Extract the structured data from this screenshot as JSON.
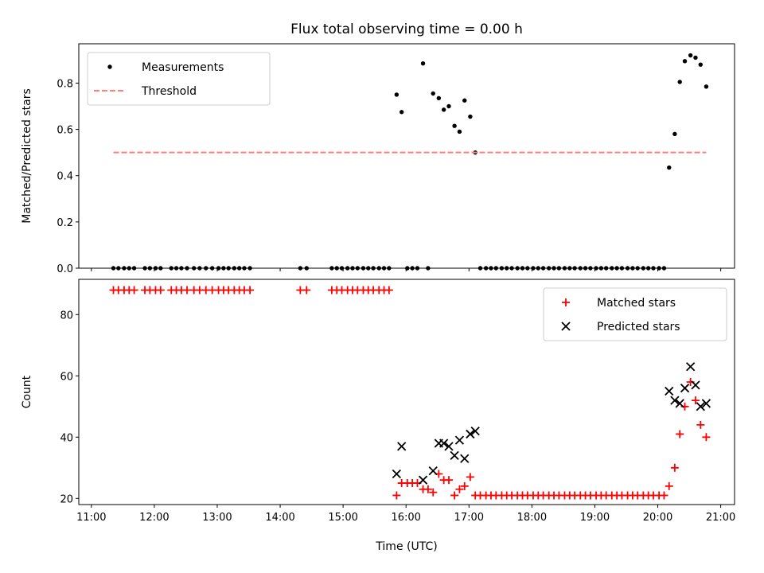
{
  "title": "Flux total observing time = 0.00 h",
  "chart_data": [
    {
      "type": "scatter",
      "ylabel": "Matched/Predicted stars",
      "xlim": [
        10.8,
        21.22
      ],
      "ylim": [
        0.0,
        0.97
      ],
      "yticks": [
        0.0,
        0.2,
        0.4,
        0.6,
        0.8
      ],
      "ytick_labels": [
        "0.0",
        "0.2",
        "0.4",
        "0.6",
        "0.8"
      ],
      "legend_position": "top-left",
      "series": [
        {
          "name": "Measurements",
          "marker": "dot",
          "color": "#000000",
          "points": [
            [
              11.35,
              0
            ],
            [
              11.43,
              0
            ],
            [
              11.52,
              0
            ],
            [
              11.6,
              0
            ],
            [
              11.68,
              0
            ],
            [
              11.85,
              0
            ],
            [
              11.93,
              0
            ],
            [
              12.02,
              0
            ],
            [
              12.1,
              0
            ],
            [
              12.27,
              0
            ],
            [
              12.35,
              0
            ],
            [
              12.43,
              0
            ],
            [
              12.52,
              0
            ],
            [
              12.63,
              0
            ],
            [
              12.72,
              0
            ],
            [
              12.82,
              0
            ],
            [
              12.92,
              0
            ],
            [
              13.02,
              0
            ],
            [
              13.1,
              0
            ],
            [
              13.18,
              0
            ],
            [
              13.27,
              0
            ],
            [
              13.35,
              0
            ],
            [
              13.43,
              0
            ],
            [
              13.52,
              0
            ],
            [
              14.32,
              0
            ],
            [
              14.42,
              0
            ],
            [
              14.82,
              0
            ],
            [
              14.9,
              0
            ],
            [
              14.98,
              0
            ],
            [
              15.07,
              0
            ],
            [
              15.15,
              0
            ],
            [
              15.23,
              0
            ],
            [
              15.32,
              0
            ],
            [
              15.4,
              0
            ],
            [
              15.48,
              0
            ],
            [
              15.57,
              0
            ],
            [
              15.65,
              0
            ],
            [
              15.73,
              0
            ],
            [
              15.85,
              0.75
            ],
            [
              15.93,
              0.675
            ],
            [
              16.02,
              0
            ],
            [
              16.1,
              0
            ],
            [
              16.18,
              0
            ],
            [
              16.27,
              0.885
            ],
            [
              16.35,
              0
            ],
            [
              16.43,
              0.755
            ],
            [
              16.52,
              0.735
            ],
            [
              16.6,
              0.685
            ],
            [
              16.68,
              0.7
            ],
            [
              16.77,
              0.615
            ],
            [
              16.85,
              0.59
            ],
            [
              16.93,
              0.725
            ],
            [
              17.02,
              0.655
            ],
            [
              17.1,
              0.5
            ],
            [
              17.18,
              0
            ],
            [
              17.27,
              0
            ],
            [
              17.35,
              0
            ],
            [
              17.43,
              0
            ],
            [
              17.52,
              0
            ],
            [
              17.6,
              0
            ],
            [
              17.68,
              0
            ],
            [
              17.77,
              0
            ],
            [
              17.85,
              0
            ],
            [
              17.93,
              0
            ],
            [
              18.02,
              0
            ],
            [
              18.1,
              0
            ],
            [
              18.18,
              0
            ],
            [
              18.27,
              0
            ],
            [
              18.35,
              0
            ],
            [
              18.43,
              0
            ],
            [
              18.52,
              0
            ],
            [
              18.6,
              0
            ],
            [
              18.68,
              0
            ],
            [
              18.77,
              0
            ],
            [
              18.85,
              0
            ],
            [
              18.93,
              0
            ],
            [
              19.02,
              0
            ],
            [
              19.1,
              0
            ],
            [
              19.18,
              0
            ],
            [
              19.27,
              0
            ],
            [
              19.35,
              0
            ],
            [
              19.43,
              0
            ],
            [
              19.52,
              0
            ],
            [
              19.6,
              0
            ],
            [
              19.68,
              0
            ],
            [
              19.77,
              0
            ],
            [
              19.85,
              0
            ],
            [
              19.93,
              0
            ],
            [
              20.02,
              0
            ],
            [
              20.1,
              0
            ],
            [
              20.18,
              0.435
            ],
            [
              20.27,
              0.58
            ],
            [
              20.35,
              0.805
            ],
            [
              20.43,
              0.895
            ],
            [
              20.52,
              0.92
            ],
            [
              20.6,
              0.91
            ],
            [
              20.68,
              0.88
            ],
            [
              20.77,
              0.785
            ]
          ]
        },
        {
          "name": "Threshold",
          "marker": "dashed-line",
          "color": "#ff7f7f",
          "points": [
            [
              11.35,
              0.5
            ],
            [
              20.77,
              0.5
            ]
          ]
        }
      ]
    },
    {
      "type": "scatter",
      "xlabel": "Time (UTC)",
      "ylabel": "Count",
      "xlim": [
        10.8,
        21.22
      ],
      "ylim": [
        18.0,
        91.5
      ],
      "yticks": [
        20,
        40,
        60,
        80
      ],
      "ytick_labels": [
        "20",
        "40",
        "60",
        "80"
      ],
      "xticks": [
        11,
        12,
        13,
        14,
        15,
        16,
        17,
        18,
        19,
        20,
        21
      ],
      "xtick_labels": [
        "11:00",
        "12:00",
        "13:00",
        "14:00",
        "15:00",
        "16:00",
        "17:00",
        "18:00",
        "19:00",
        "20:00",
        "21:00"
      ],
      "legend_position": "top-right",
      "series": [
        {
          "name": "Matched stars",
          "marker": "plus",
          "color": "#ff0000",
          "points": [
            [
              11.35,
              88
            ],
            [
              11.43,
              88
            ],
            [
              11.52,
              88
            ],
            [
              11.6,
              88
            ],
            [
              11.68,
              88
            ],
            [
              11.85,
              88
            ],
            [
              11.93,
              88
            ],
            [
              12.02,
              88
            ],
            [
              12.1,
              88
            ],
            [
              12.27,
              88
            ],
            [
              12.35,
              88
            ],
            [
              12.43,
              88
            ],
            [
              12.52,
              88
            ],
            [
              12.63,
              88
            ],
            [
              12.72,
              88
            ],
            [
              12.82,
              88
            ],
            [
              12.92,
              88
            ],
            [
              13.02,
              88
            ],
            [
              13.1,
              88
            ],
            [
              13.18,
              88
            ],
            [
              13.27,
              88
            ],
            [
              13.35,
              88
            ],
            [
              13.43,
              88
            ],
            [
              13.52,
              88
            ],
            [
              14.32,
              88
            ],
            [
              14.42,
              88
            ],
            [
              14.82,
              88
            ],
            [
              14.9,
              88
            ],
            [
              14.98,
              88
            ],
            [
              15.07,
              88
            ],
            [
              15.15,
              88
            ],
            [
              15.23,
              88
            ],
            [
              15.32,
              88
            ],
            [
              15.4,
              88
            ],
            [
              15.48,
              88
            ],
            [
              15.57,
              88
            ],
            [
              15.65,
              88
            ],
            [
              15.73,
              88
            ],
            [
              15.85,
              21
            ],
            [
              15.93,
              25
            ],
            [
              16.02,
              25
            ],
            [
              16.1,
              25
            ],
            [
              16.18,
              25
            ],
            [
              16.27,
              23
            ],
            [
              16.35,
              23
            ],
            [
              16.43,
              22
            ],
            [
              16.52,
              28
            ],
            [
              16.6,
              26
            ],
            [
              16.68,
              26
            ],
            [
              16.77,
              21
            ],
            [
              16.85,
              23
            ],
            [
              16.93,
              24
            ],
            [
              17.02,
              27
            ],
            [
              17.1,
              21
            ],
            [
              17.18,
              21
            ],
            [
              17.27,
              21
            ],
            [
              17.35,
              21
            ],
            [
              17.43,
              21
            ],
            [
              17.52,
              21
            ],
            [
              17.6,
              21
            ],
            [
              17.68,
              21
            ],
            [
              17.77,
              21
            ],
            [
              17.85,
              21
            ],
            [
              17.93,
              21
            ],
            [
              18.02,
              21
            ],
            [
              18.1,
              21
            ],
            [
              18.18,
              21
            ],
            [
              18.27,
              21
            ],
            [
              18.35,
              21
            ],
            [
              18.43,
              21
            ],
            [
              18.52,
              21
            ],
            [
              18.6,
              21
            ],
            [
              18.68,
              21
            ],
            [
              18.77,
              21
            ],
            [
              18.85,
              21
            ],
            [
              18.93,
              21
            ],
            [
              19.02,
              21
            ],
            [
              19.1,
              21
            ],
            [
              19.18,
              21
            ],
            [
              19.27,
              21
            ],
            [
              19.35,
              21
            ],
            [
              19.43,
              21
            ],
            [
              19.52,
              21
            ],
            [
              19.6,
              21
            ],
            [
              19.68,
              21
            ],
            [
              19.77,
              21
            ],
            [
              19.85,
              21
            ],
            [
              19.93,
              21
            ],
            [
              20.02,
              21
            ],
            [
              20.1,
              21
            ],
            [
              20.18,
              24
            ],
            [
              20.27,
              30
            ],
            [
              20.35,
              41
            ],
            [
              20.43,
              50
            ],
            [
              20.52,
              58
            ],
            [
              20.6,
              52
            ],
            [
              20.68,
              44
            ],
            [
              20.77,
              40
            ]
          ]
        },
        {
          "name": "Predicted stars",
          "marker": "x",
          "color": "#000000",
          "points": [
            [
              15.85,
              28
            ],
            [
              15.93,
              37
            ],
            [
              16.27,
              26
            ],
            [
              16.43,
              29
            ],
            [
              16.52,
              38
            ],
            [
              16.6,
              38
            ],
            [
              16.68,
              37
            ],
            [
              16.77,
              34
            ],
            [
              16.85,
              39
            ],
            [
              16.93,
              33
            ],
            [
              17.02,
              41
            ],
            [
              17.1,
              42
            ],
            [
              20.18,
              55
            ],
            [
              20.27,
              52
            ],
            [
              20.35,
              51
            ],
            [
              20.43,
              56
            ],
            [
              20.52,
              63
            ],
            [
              20.6,
              57
            ],
            [
              20.68,
              50
            ],
            [
              20.77,
              51
            ]
          ]
        }
      ]
    }
  ]
}
